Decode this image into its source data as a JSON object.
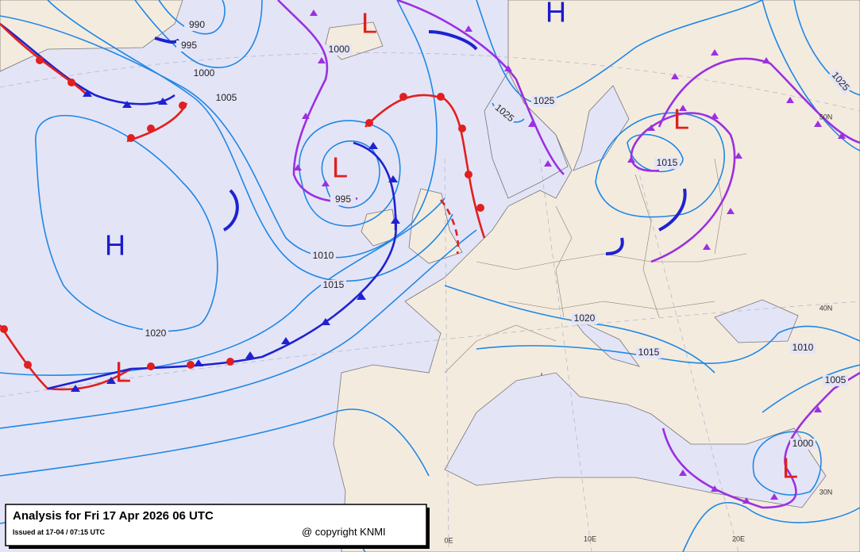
{
  "header": {
    "title": "Analysis for Fri 17 Apr 2026 06 UTC",
    "issued": "Issued at 17-04 / 07:15 UTC",
    "copyright": "@ copyright KNMI"
  },
  "pressure_systems": [
    {
      "label": "H",
      "color": "#1a1ad0"
    },
    {
      "label": "L",
      "color": "#e0201e"
    },
    {
      "label": "L",
      "color": "#e0201e"
    },
    {
      "label": "H",
      "color": "#1a1ad0"
    },
    {
      "label": "L",
      "color": "#e0201e"
    },
    {
      "label": "L",
      "color": "#e0201e"
    },
    {
      "label": "L",
      "color": "#e0201e"
    }
  ],
  "isobar_labels": [
    "990",
    "995",
    "1000",
    "1005",
    "1000",
    "1025",
    "1025",
    "1015",
    "1025",
    "995",
    "1010",
    "1015",
    "1020",
    "1020",
    "1015",
    "1010",
    "1005",
    "1000"
  ],
  "grid_labels": [
    "50N",
    "40N",
    "30N",
    "0E",
    "10E",
    "20E"
  ]
}
